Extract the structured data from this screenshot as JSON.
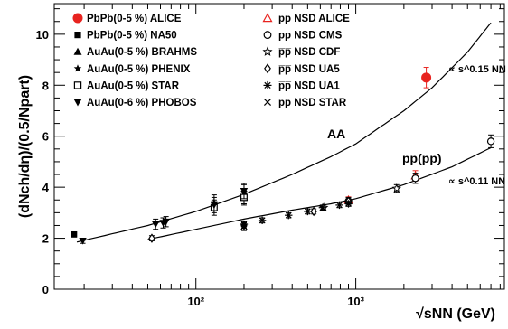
{
  "chart_data": {
    "type": "scatter",
    "title": "",
    "xlabel": "√sNN (GeV)",
    "ylabel": "(dNch/dη)/(0.5/Npart)",
    "x_scale": "log",
    "xlim": [
      13,
      8500
    ],
    "ylim": [
      0,
      11.2
    ],
    "y_ticks": [
      0,
      2,
      4,
      6,
      8,
      10
    ],
    "x_tick_labels": [
      "10²",
      "10³"
    ],
    "grid": false,
    "legend_placement": "top-left",
    "annotations": {
      "aa_label": "AA",
      "pp_label": "pp(p̅p̅)",
      "aa_scaling": "∝ s^0.15 NN",
      "pp_scaling": "∝ s^0.11 NN"
    },
    "fits": [
      {
        "label": "AA",
        "x": [
          18,
          50,
          100,
          200,
          400,
          700,
          1000,
          2000,
          3000,
          5000,
          7000
        ],
        "y": [
          1.85,
          2.5,
          3.05,
          3.72,
          4.5,
          5.2,
          5.7,
          7.0,
          7.9,
          9.3,
          10.45
        ]
      },
      {
        "label": "pp(p̅p̅)",
        "x": [
          50,
          100,
          200,
          400,
          700,
          1000,
          2000,
          4000,
          7000
        ],
        "y": [
          1.95,
          2.35,
          2.75,
          3.1,
          3.35,
          3.55,
          4.1,
          4.8,
          5.55
        ]
      }
    ],
    "series": [
      {
        "name": "PbPb(0-5 %) ALICE",
        "marker": "circle-filled",
        "color": "#e8231f",
        "x": [
          2760
        ],
        "y": [
          8.3
        ],
        "yerr": [
          0.4
        ]
      },
      {
        "name": "PbPb(0-5 %) NA50",
        "marker": "square-filled",
        "color": "#000000",
        "x": [
          17.3
        ],
        "y": [
          2.15
        ],
        "yerr": [
          0.1
        ]
      },
      {
        "name": "AuAu(0-5 %) BRAHMS",
        "marker": "triangle-up-filled",
        "color": "#000000",
        "x": [
          200
        ],
        "y": [
          3.6
        ],
        "yerr": [
          0.25
        ]
      },
      {
        "name": "AuAu(0-5 %) PHENIX",
        "marker": "star-filled",
        "color": "#000000",
        "x": [
          130,
          200
        ],
        "y": [
          3.4,
          3.8
        ],
        "yerr": [
          0.3,
          0.3
        ]
      },
      {
        "name": "AuAu(0-5 %) STAR",
        "marker": "square-open",
        "color": "#000000",
        "x": [
          130,
          200
        ],
        "y": [
          3.2,
          3.6
        ],
        "yerr": [
          0.3,
          0.3
        ]
      },
      {
        "name": "AuAu(0-6 %) PHOBOS",
        "marker": "triangle-down-filled",
        "color": "#000000",
        "x": [
          19.6,
          56,
          62.4,
          65,
          130,
          200
        ],
        "y": [
          1.9,
          2.55,
          2.6,
          2.65,
          3.3,
          3.85
        ],
        "yerr": [
          0.1,
          0.2,
          0.2,
          0.2,
          0.3,
          0.3
        ]
      },
      {
        "name": "pp NSD ALICE",
        "marker": "triangle-up-open",
        "color": "#e8231f",
        "x": [
          900,
          2360
        ],
        "y": [
          3.5,
          4.45
        ],
        "yerr": [
          0.12,
          0.2
        ]
      },
      {
        "name": "pp NSD CMS",
        "marker": "circle-open",
        "color": "#000000",
        "x": [
          900,
          2360,
          7000
        ],
        "y": [
          3.45,
          4.35,
          5.8
        ],
        "yerr": [
          0.15,
          0.2,
          0.25
        ]
      },
      {
        "name": "p̅p̅ NSD CDF",
        "marker": "star-open",
        "color": "#000000",
        "x": [
          630,
          1800
        ],
        "y": [
          3.2,
          3.95
        ],
        "yerr": [
          0.1,
          0.15
        ]
      },
      {
        "name": "p̅p̅ NSD UA5",
        "marker": "diamond-open",
        "color": "#000000",
        "x": [
          53,
          200,
          546,
          900
        ],
        "y": [
          2.0,
          2.5,
          3.05,
          3.45
        ],
        "yerr": [
          0.1,
          0.1,
          0.1,
          0.1
        ]
      },
      {
        "name": "p̅p̅ NSD UA1",
        "marker": "asterisk",
        "color": "#000000",
        "x": [
          200,
          260,
          380,
          500,
          620,
          790,
          900
        ],
        "y": [
          2.55,
          2.7,
          2.9,
          3.05,
          3.2,
          3.3,
          3.35
        ],
        "yerr": [
          0.1,
          0.1,
          0.1,
          0.1,
          0.1,
          0.1,
          0.1
        ]
      },
      {
        "name": "pp NSD STAR",
        "marker": "cross",
        "color": "#000000",
        "x": [
          200
        ],
        "y": [
          2.45
        ],
        "yerr": [
          0.15
        ]
      }
    ]
  }
}
